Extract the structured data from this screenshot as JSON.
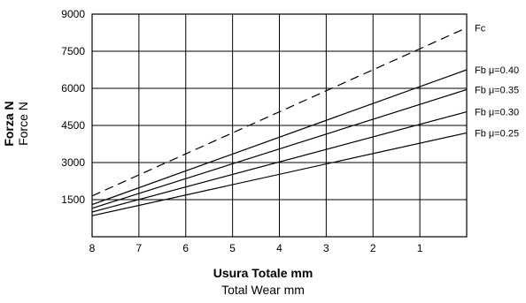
{
  "chart_data": {
    "type": "line",
    "ylabel_it": "Forza  N",
    "ylabel_en": "Force  N",
    "xlabel_it": "Usura Totale  mm",
    "xlabel_en": "Total Wear  mm",
    "x_ticks": [
      "8",
      "7",
      "6",
      "5",
      "4",
      "3",
      "2",
      "1"
    ],
    "y_ticks": [
      "1500",
      "3000",
      "4500",
      "6000",
      "7500",
      "9000"
    ],
    "xlim": [
      8,
      0
    ],
    "ylim": [
      0,
      9000
    ],
    "grid": true,
    "series": [
      {
        "name": "Fc",
        "style": "dashed",
        "x": [
          8,
          0
        ],
        "y": [
          1650,
          8450
        ]
      },
      {
        "name": "Fb μ=0.40",
        "style": "solid",
        "x": [
          8,
          0
        ],
        "y": [
          1300,
          6750
        ]
      },
      {
        "name": "Fb μ=0.35",
        "style": "solid",
        "x": [
          8,
          0
        ],
        "y": [
          1150,
          5950
        ]
      },
      {
        "name": "Fb μ=0.30",
        "style": "solid",
        "x": [
          8,
          0
        ],
        "y": [
          1000,
          5050
        ]
      },
      {
        "name": "Fb μ=0.25",
        "style": "solid",
        "x": [
          8,
          0
        ],
        "y": [
          850,
          4200
        ]
      }
    ]
  }
}
